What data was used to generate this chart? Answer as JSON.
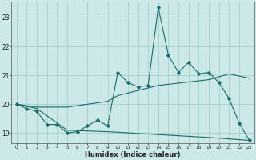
{
  "xlabel": "Humidex (Indice chaleur)",
  "bg_color": "#cce8e8",
  "grid_color": "#99cccc",
  "line_color": "#1a6b6b",
  "xlim": [
    -0.5,
    23.5
  ],
  "ylim": [
    18.65,
    23.55
  ],
  "yticks": [
    19,
    20,
    21,
    22,
    23
  ],
  "xticks": [
    0,
    1,
    2,
    3,
    4,
    5,
    6,
    7,
    8,
    9,
    10,
    11,
    12,
    13,
    14,
    15,
    16,
    17,
    18,
    19,
    20,
    21,
    22,
    23
  ],
  "series_main": [
    [
      0,
      20.0
    ],
    [
      1,
      19.85
    ],
    [
      2,
      19.75
    ],
    [
      3,
      19.3
    ],
    [
      4,
      19.3
    ],
    [
      5,
      19.0
    ],
    [
      6,
      19.05
    ],
    [
      7,
      19.25
    ],
    [
      8,
      19.45
    ],
    [
      9,
      19.25
    ],
    [
      10,
      21.1
    ],
    [
      11,
      20.75
    ],
    [
      12,
      20.6
    ],
    [
      13,
      20.65
    ],
    [
      14,
      23.35
    ],
    [
      15,
      21.7
    ],
    [
      16,
      21.1
    ],
    [
      17,
      21.45
    ],
    [
      18,
      21.05
    ],
    [
      19,
      21.1
    ],
    [
      20,
      20.75
    ],
    [
      21,
      20.2
    ],
    [
      22,
      19.35
    ],
    [
      23,
      18.75
    ]
  ],
  "series_upper": [
    [
      0,
      20.0
    ],
    [
      2,
      19.9
    ],
    [
      5,
      19.9
    ],
    [
      9,
      20.1
    ],
    [
      10,
      20.3
    ],
    [
      14,
      20.65
    ],
    [
      19,
      20.85
    ],
    [
      20,
      20.95
    ],
    [
      21,
      21.05
    ],
    [
      23,
      20.9
    ]
  ],
  "series_lower": [
    [
      0,
      20.0
    ],
    [
      2,
      19.85
    ],
    [
      5,
      19.1
    ],
    [
      9,
      19.05
    ],
    [
      14,
      18.95
    ],
    [
      19,
      18.85
    ],
    [
      23,
      18.75
    ]
  ]
}
